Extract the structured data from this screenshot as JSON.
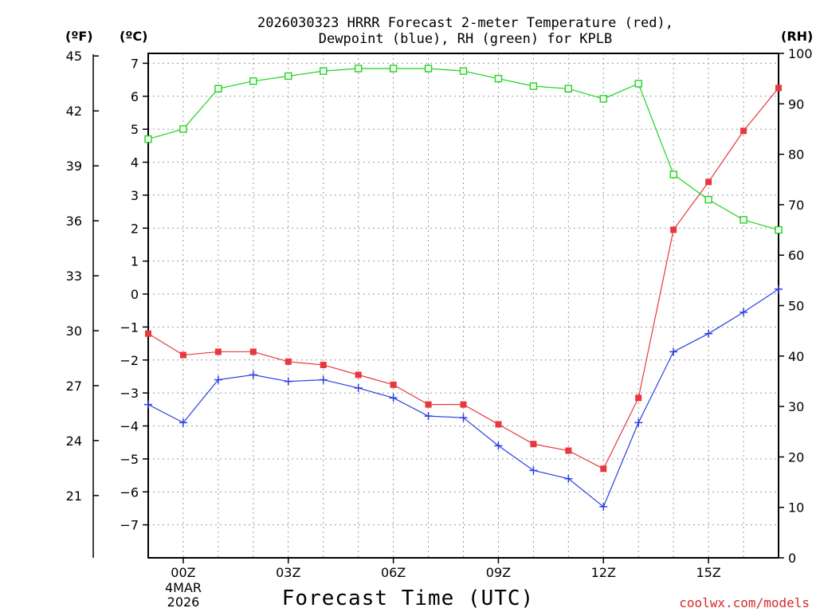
{
  "chart_data": {
    "type": "line",
    "title_line1": "2026030323 HRRR Forecast 2-meter Temperature (red),",
    "title_line2": "Dewpoint (blue), RH (green) for KPLB",
    "xlabel": "Forecast Time (UTC)",
    "credit": "coolwx.com/models",
    "units": {
      "fahrenheit": "(ºF)",
      "celsius": "(ºC)",
      "rh": "(RH)"
    },
    "date_label": [
      "4MAR",
      "2026"
    ],
    "x_hours": [
      -1,
      0,
      1,
      2,
      3,
      4,
      5,
      6,
      7,
      8,
      9,
      10,
      11,
      12,
      13,
      14,
      15,
      16,
      17
    ],
    "x_ticks": [
      {
        "hour": 0,
        "label": "00Z"
      },
      {
        "hour": 3,
        "label": "03Z"
      },
      {
        "hour": 6,
        "label": "06Z"
      },
      {
        "hour": 9,
        "label": "09Z"
      },
      {
        "hour": 12,
        "label": "12Z"
      },
      {
        "hour": 15,
        "label": "15Z"
      }
    ],
    "xlim": [
      -1,
      17
    ],
    "celsius_axis": {
      "ylim": [
        -8,
        7.3
      ],
      "ticks": [
        -7,
        -6,
        -5,
        -4,
        -3,
        -2,
        -1,
        0,
        1,
        2,
        3,
        4,
        5,
        6,
        7
      ]
    },
    "fahrenheit_axis": {
      "ticks": [
        21,
        24,
        27,
        30,
        33,
        36,
        39,
        42,
        45
      ]
    },
    "rh_axis": {
      "ylim": [
        0,
        100
      ],
      "ticks": [
        0,
        10,
        20,
        30,
        40,
        50,
        60,
        70,
        80,
        90,
        100
      ]
    },
    "series": [
      {
        "name": "Temperature",
        "color": "#e8383d",
        "marker": "filled-square",
        "values": [
          -1.2,
          -1.85,
          -1.75,
          -1.75,
          -2.05,
          -2.15,
          -2.45,
          -2.75,
          -3.35,
          -3.35,
          -3.95,
          -4.55,
          -4.75,
          -5.3,
          -3.15,
          1.95,
          3.4,
          4.95,
          6.25
        ]
      },
      {
        "name": "Dewpoint",
        "color": "#2a3fe0",
        "marker": "plus",
        "values": [
          -3.35,
          -3.9,
          -2.6,
          -2.45,
          -2.65,
          -2.6,
          -2.85,
          -3.15,
          -3.7,
          -3.75,
          -4.6,
          -5.35,
          -5.6,
          -6.45,
          -3.9,
          -1.75,
          -1.2,
          -0.55,
          0.15
        ]
      },
      {
        "name": "RH",
        "color": "#1fd41f",
        "marker": "open-square",
        "values": [
          83,
          85,
          93,
          94.5,
          95.5,
          96.5,
          97,
          97,
          97,
          96.5,
          95,
          93.5,
          93,
          91,
          94,
          76,
          71,
          67,
          65
        ]
      }
    ]
  }
}
